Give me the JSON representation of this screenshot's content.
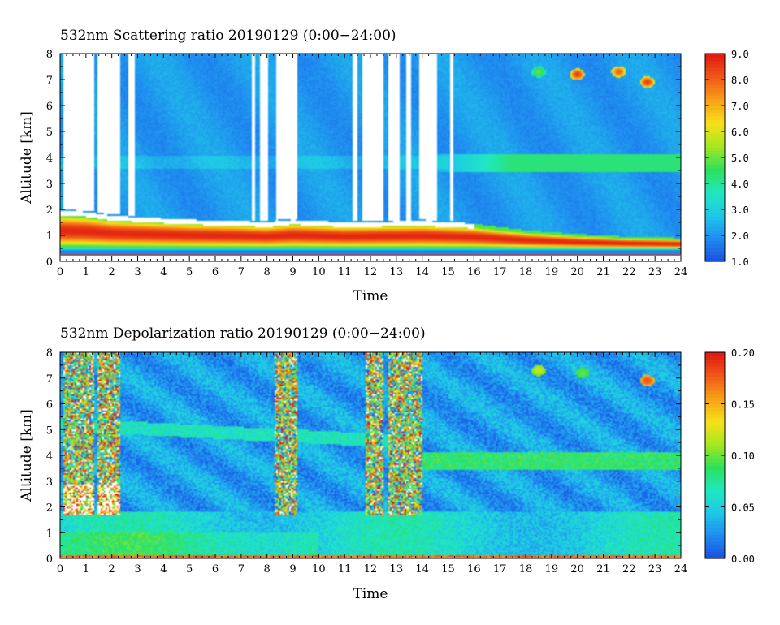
{
  "chart_data": [
    {
      "type": "heatmap",
      "title": "532nm Scattering ratio  20190129 (0:00−24:00)",
      "xlabel": "Time",
      "ylabel": "Altitude [km]",
      "xlim": [
        0,
        24
      ],
      "ylim": [
        0,
        8
      ],
      "x_ticks": [
        "0",
        "1",
        "2",
        "3",
        "4",
        "5",
        "6",
        "7",
        "8",
        "9",
        "10",
        "11",
        "12",
        "13",
        "14",
        "15",
        "16",
        "17",
        "18",
        "19",
        "20",
        "21",
        "22",
        "23",
        "24"
      ],
      "y_ticks": [
        "0",
        "1",
        "2",
        "3",
        "4",
        "5",
        "6",
        "7",
        "8"
      ],
      "colorbar": {
        "range": [
          1.0,
          9.0
        ],
        "ticks": [
          "1.0",
          "2.0",
          "3.0",
          "4.0",
          "5.0",
          "6.0",
          "7.0",
          "8.0",
          "9.0"
        ],
        "colors": [
          "#1a4fe0",
          "#1f8cf0",
          "#1fc8e8",
          "#20e8c0",
          "#2ee05a",
          "#a8e820",
          "#f8e018",
          "#f8a018",
          "#f05818",
          "#e01810"
        ]
      },
      "no_data_color": "#ffffff",
      "features": {
        "no_data_gaps_hours": [
          [
            0.15,
            1.3
          ],
          [
            1.45,
            2.3
          ],
          [
            2.65,
            2.9
          ],
          [
            7.4,
            7.55
          ],
          [
            7.75,
            8.05
          ],
          [
            8.35,
            9.2
          ],
          [
            11.3,
            11.5
          ],
          [
            11.7,
            12.5
          ],
          [
            12.7,
            13.1
          ],
          [
            13.4,
            13.6
          ],
          [
            13.9,
            14.6
          ],
          [
            15.05,
            15.2
          ]
        ],
        "cloud_top_km": [
          {
            "t": 0,
            "z": 1.95
          },
          {
            "t": 1,
            "z": 1.9
          },
          {
            "t": 2,
            "z": 1.75
          },
          {
            "t": 3,
            "z": 1.7
          },
          {
            "t": 5,
            "z": 1.6
          },
          {
            "t": 7,
            "z": 1.55
          },
          {
            "t": 8,
            "z": 1.5
          },
          {
            "t": 9,
            "z": 1.6
          },
          {
            "t": 11,
            "z": 1.5
          },
          {
            "t": 14,
            "z": 1.55
          },
          {
            "t": 16,
            "z": 1.45
          },
          {
            "t": 18,
            "z": 1.2
          },
          {
            "t": 20,
            "z": 1.05
          },
          {
            "t": 22,
            "z": 0.95
          },
          {
            "t": 24,
            "z": 0.9
          }
        ],
        "aerosol_layer_km": {
          "t_start": 17,
          "t_end": 24,
          "z_center": 3.8,
          "value": 4.3
        },
        "high_cloud_spots": [
          {
            "t": 18.5,
            "z": 7.3,
            "value": 5
          },
          {
            "t": 20.0,
            "z": 7.2,
            "value": 8.5
          },
          {
            "t": 21.6,
            "z": 7.3,
            "value": 8
          },
          {
            "t": 22.7,
            "z": 6.9,
            "value": 8.5
          }
        ]
      }
    },
    {
      "type": "heatmap",
      "title": "532nm Depolarization ratio  20190129 (0:00−24:00)",
      "xlabel": "Time",
      "ylabel": "Altitude [km]",
      "xlim": [
        0,
        24
      ],
      "ylim": [
        0,
        8
      ],
      "x_ticks": [
        "0",
        "1",
        "2",
        "3",
        "4",
        "5",
        "6",
        "7",
        "8",
        "9",
        "10",
        "11",
        "12",
        "13",
        "14",
        "15",
        "16",
        "17",
        "18",
        "19",
        "20",
        "21",
        "22",
        "23",
        "24"
      ],
      "y_ticks": [
        "0",
        "1",
        "2",
        "3",
        "4",
        "5",
        "6",
        "7",
        "8"
      ],
      "colorbar": {
        "range": [
          0.0,
          0.2
        ],
        "ticks": [
          "0.00",
          "0.05",
          "0.10",
          "0.15",
          "0.20"
        ],
        "colors": [
          "#1a4fe0",
          "#1f8cf0",
          "#1fc8e8",
          "#20e8c0",
          "#2ee05a",
          "#a8e820",
          "#f8e018",
          "#f8a018",
          "#f05818",
          "#e01810"
        ]
      },
      "features": {
        "noisy_columns_hours": [
          [
            0.15,
            1.3
          ],
          [
            1.45,
            2.3
          ],
          [
            8.3,
            9.2
          ],
          [
            11.8,
            12.5
          ],
          [
            12.7,
            13.6
          ],
          [
            13.6,
            14.0
          ]
        ],
        "boundary_layer_km": [
          0,
          1.8
        ],
        "aerosol_layer_km": {
          "t_start": 14,
          "t_end": 24,
          "z_center": 3.8,
          "value": 0.1
        },
        "high_cloud_spots": [
          {
            "t": 18.5,
            "z": 7.3,
            "value": 0.12
          },
          {
            "t": 20.2,
            "z": 7.2,
            "value": 0.1
          },
          {
            "t": 22.7,
            "z": 6.9,
            "value": 0.18
          }
        ]
      }
    }
  ]
}
